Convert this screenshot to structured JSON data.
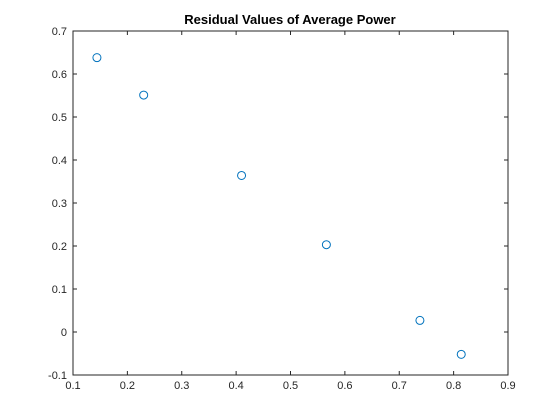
{
  "chart_data": {
    "type": "scatter",
    "title": "Residual Values of Average Power",
    "xlabel": "",
    "ylabel": "",
    "xlim": [
      0.1,
      0.9
    ],
    "ylim": [
      -0.1,
      0.7
    ],
    "xticks": [
      "0.1",
      "0.2",
      "0.3",
      "0.4",
      "0.5",
      "0.6",
      "0.7",
      "0.8",
      "0.9"
    ],
    "yticks": [
      "-0.1",
      "0",
      "0.1",
      "0.2",
      "0.3",
      "0.4",
      "0.5",
      "0.6",
      "0.7"
    ],
    "grid": false,
    "marker": "open-circle",
    "marker_color": "#0072BD",
    "series": [
      {
        "x": [
          0.144,
          0.23,
          0.41,
          0.566,
          0.738,
          0.814
        ],
        "y": [
          0.638,
          0.551,
          0.364,
          0.203,
          0.027,
          -0.052
        ]
      }
    ]
  }
}
